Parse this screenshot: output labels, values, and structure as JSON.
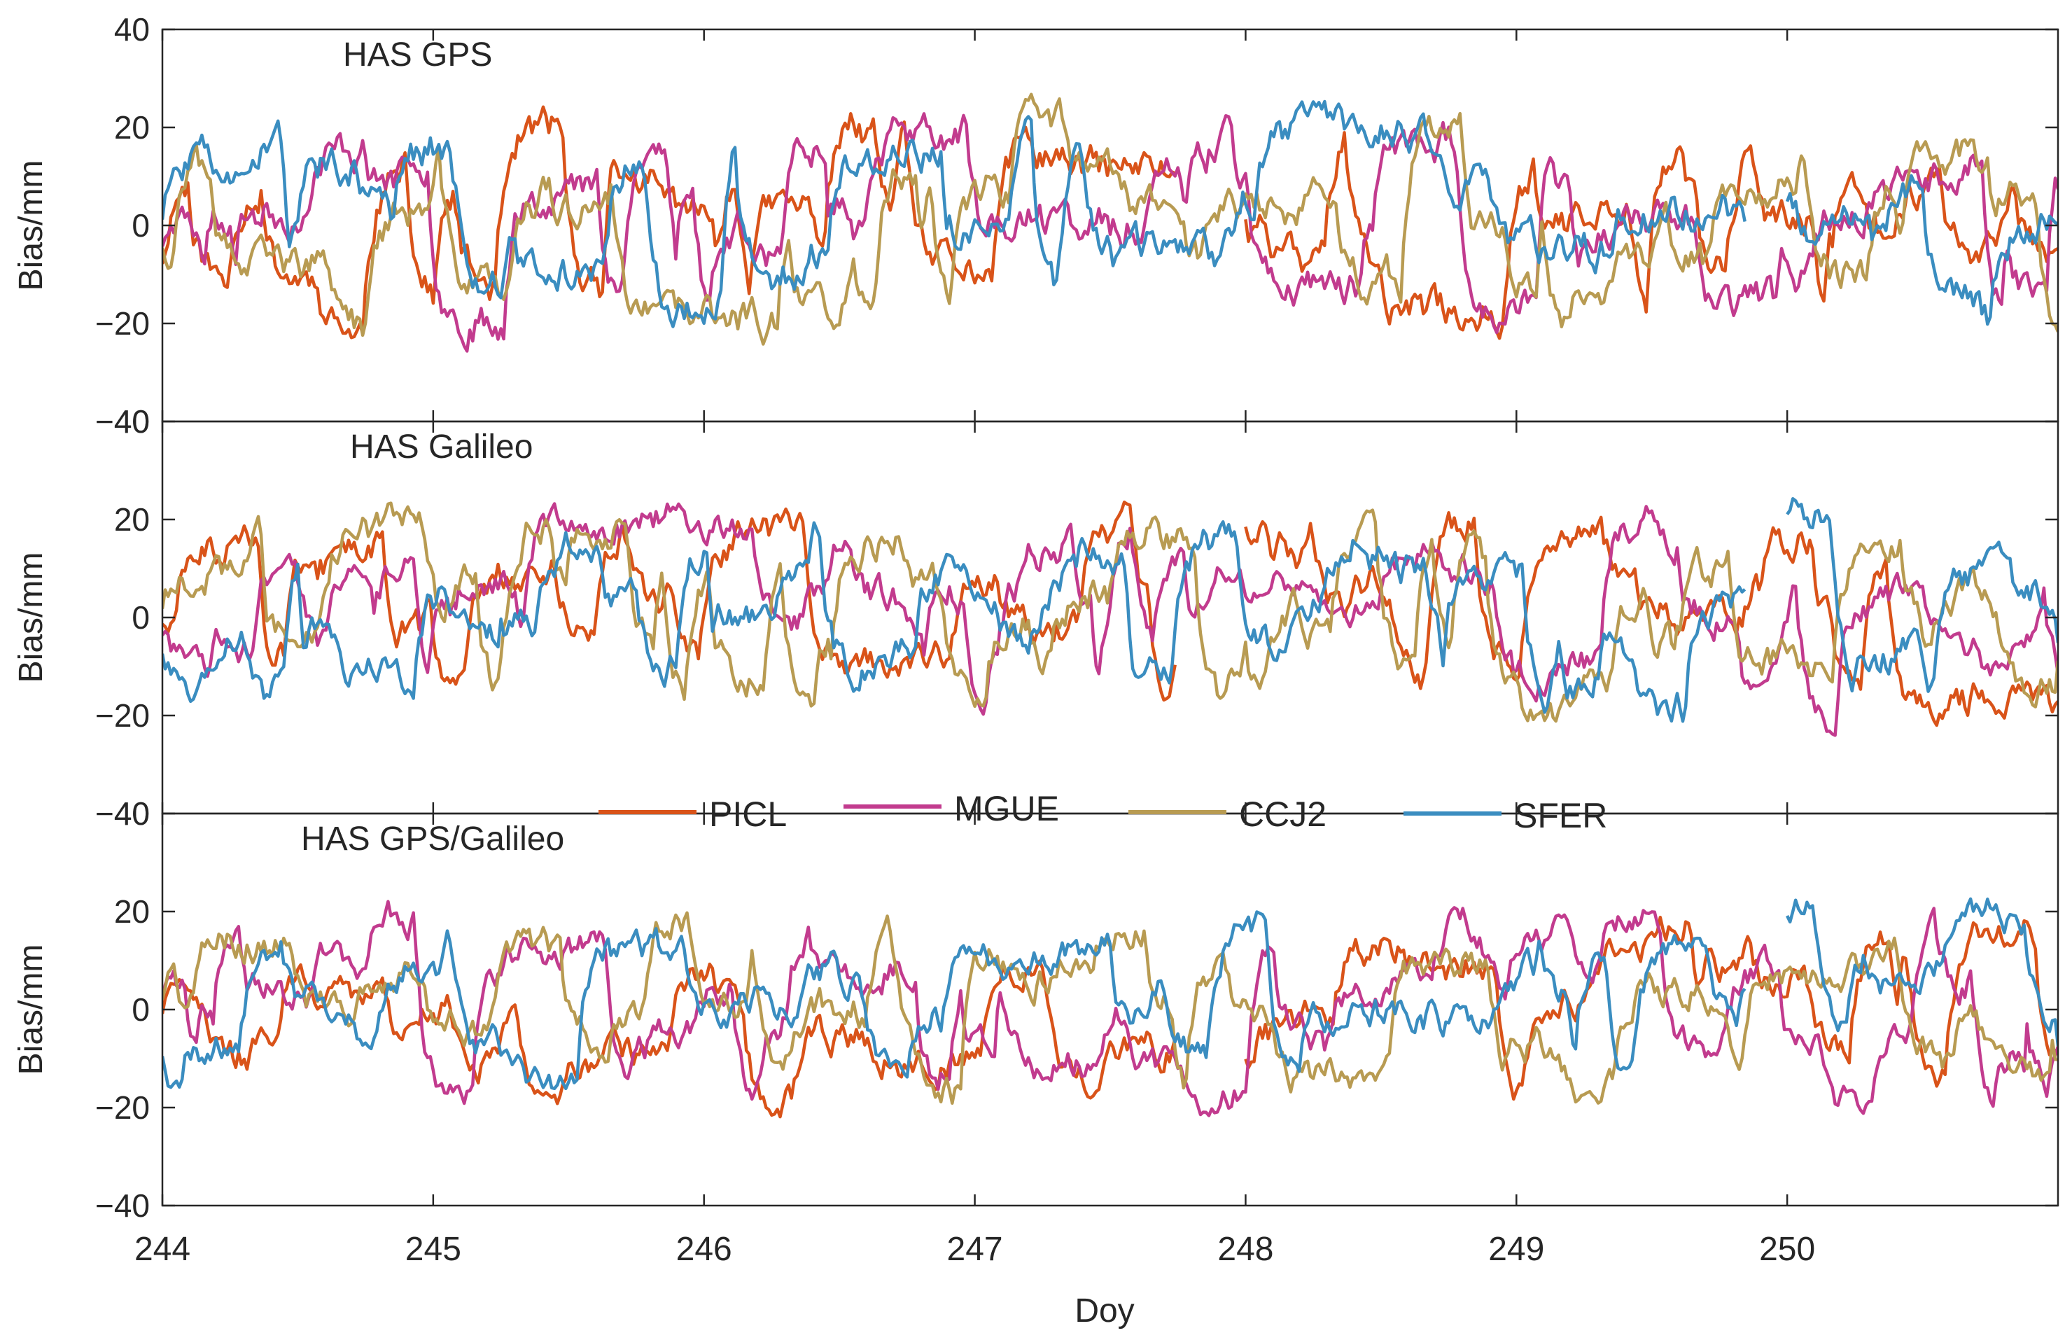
{
  "chart_data": {
    "type": "line",
    "figure": "Three stacked panels of station bias time series",
    "xlabel": "Doy",
    "xlim": [
      244,
      251
    ],
    "xticks": [
      244,
      245,
      246,
      247,
      248,
      249,
      250
    ],
    "ylim": [
      -40,
      40
    ],
    "yticks": [
      -40,
      -20,
      0,
      20,
      40
    ],
    "grid": false,
    "legend_position": "between middle and bottom panel, centered",
    "series_meta": [
      {
        "name": "PICL",
        "color": "#D95319",
        "seed": 11
      },
      {
        "name": "MGUE",
        "color": "#C23B8E",
        "seed": 23
      },
      {
        "name": "CCJ2",
        "color": "#B89B52",
        "seed": 37
      },
      {
        "name": "SFER",
        "color": "#3A8DC0",
        "seed": 51
      }
    ],
    "panels": [
      {
        "title": "HAS GPS",
        "ylabel": "Bias/mm",
        "amplitude": 17
      },
      {
        "title": "HAS Galileo",
        "ylabel": "Bias/mm",
        "amplitude": 16
      },
      {
        "title": "HAS GPS/Galileo",
        "ylabel": "Bias/mm",
        "amplitude": 15
      }
    ],
    "samples_per_day": 96,
    "gaps": [
      {
        "series": "PICL",
        "from": 247.75,
        "to": 248.0
      },
      {
        "series": "SFER",
        "from": 249.85,
        "to": 250.0
      }
    ]
  }
}
